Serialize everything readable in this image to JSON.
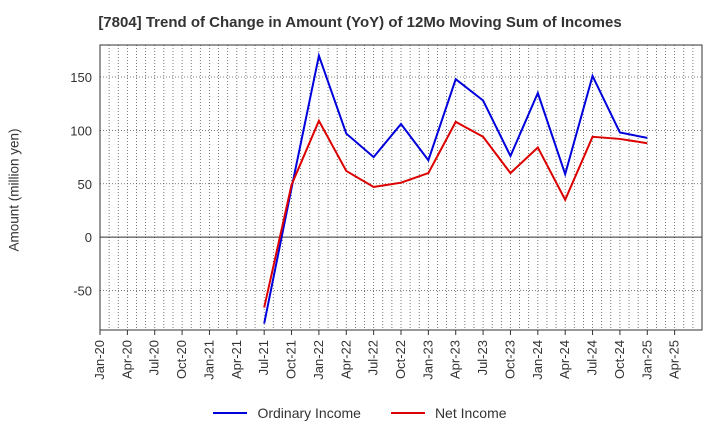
{
  "chart_data": {
    "type": "line",
    "title": "[7804]  Trend of Change in Amount (YoY) of 12Mo Moving Sum of Incomes",
    "ylabel": "Amount (million yen)",
    "xlabel": "",
    "x_ticks": [
      "Jan-20",
      "Apr-20",
      "Jul-20",
      "Oct-20",
      "Jan-21",
      "Apr-21",
      "Jul-21",
      "Oct-21",
      "Jan-22",
      "Apr-22",
      "Jul-22",
      "Oct-22",
      "Jan-23",
      "Apr-23",
      "Jul-23",
      "Oct-23",
      "Jan-24",
      "Apr-24",
      "Jul-24",
      "Oct-24",
      "Jan-25",
      "Apr-25"
    ],
    "y_ticks": [
      150,
      100,
      50,
      0,
      -50
    ],
    "y_tick_labels": [
      "150",
      "100",
      "50",
      "0",
      "-50"
    ],
    "ylim": [
      -87,
      180
    ],
    "grid": true,
    "legend_position": "bottom",
    "x": [
      "Jul-21",
      "Oct-21",
      "Jan-22",
      "Apr-22",
      "Jul-22",
      "Oct-22",
      "Jan-23",
      "Apr-23",
      "Jul-23",
      "Oct-23",
      "Jan-24",
      "Apr-24",
      "Jul-24",
      "Oct-24",
      "Jan-25"
    ],
    "series": [
      {
        "name": "Ordinary Income",
        "color": "#0000dd",
        "values": [
          -81,
          46,
          170,
          97,
          75,
          106,
          72,
          148,
          128,
          76,
          135,
          59,
          151,
          98,
          93
        ]
      },
      {
        "name": "Net Income",
        "color": "#dd0000",
        "values": [
          -66,
          49,
          109,
          62,
          47,
          51,
          60,
          108,
          94,
          60,
          84,
          35,
          94,
          92,
          88
        ]
      }
    ]
  }
}
